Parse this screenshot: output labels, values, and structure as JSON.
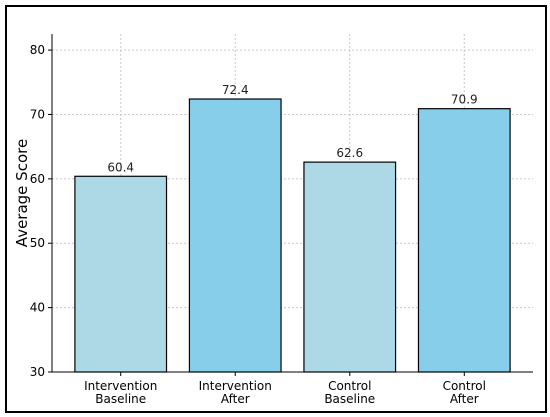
{
  "chart_data": {
    "type": "bar",
    "categories": [
      [
        "Intervention",
        "Baseline"
      ],
      [
        "Intervention",
        "After"
      ],
      [
        "Control",
        "Baseline"
      ],
      [
        "Control",
        "After"
      ]
    ],
    "values": [
      60.4,
      72.4,
      62.6,
      70.9
    ],
    "data_labels": [
      "60.4",
      "72.4",
      "62.6",
      "70.9"
    ],
    "bar_colors": [
      "#add8e6",
      "#87ceeb",
      "#add8e6",
      "#87ceeb"
    ],
    "bar_edge_color": "#000000",
    "title": "",
    "xlabel": "",
    "ylabel": "Average Score",
    "ylim": [
      30,
      82.5
    ],
    "yticks": [
      30,
      40,
      50,
      60,
      70,
      80
    ],
    "grid": true,
    "grid_style": "dotted",
    "grid_color": "#c8c8c8"
  }
}
